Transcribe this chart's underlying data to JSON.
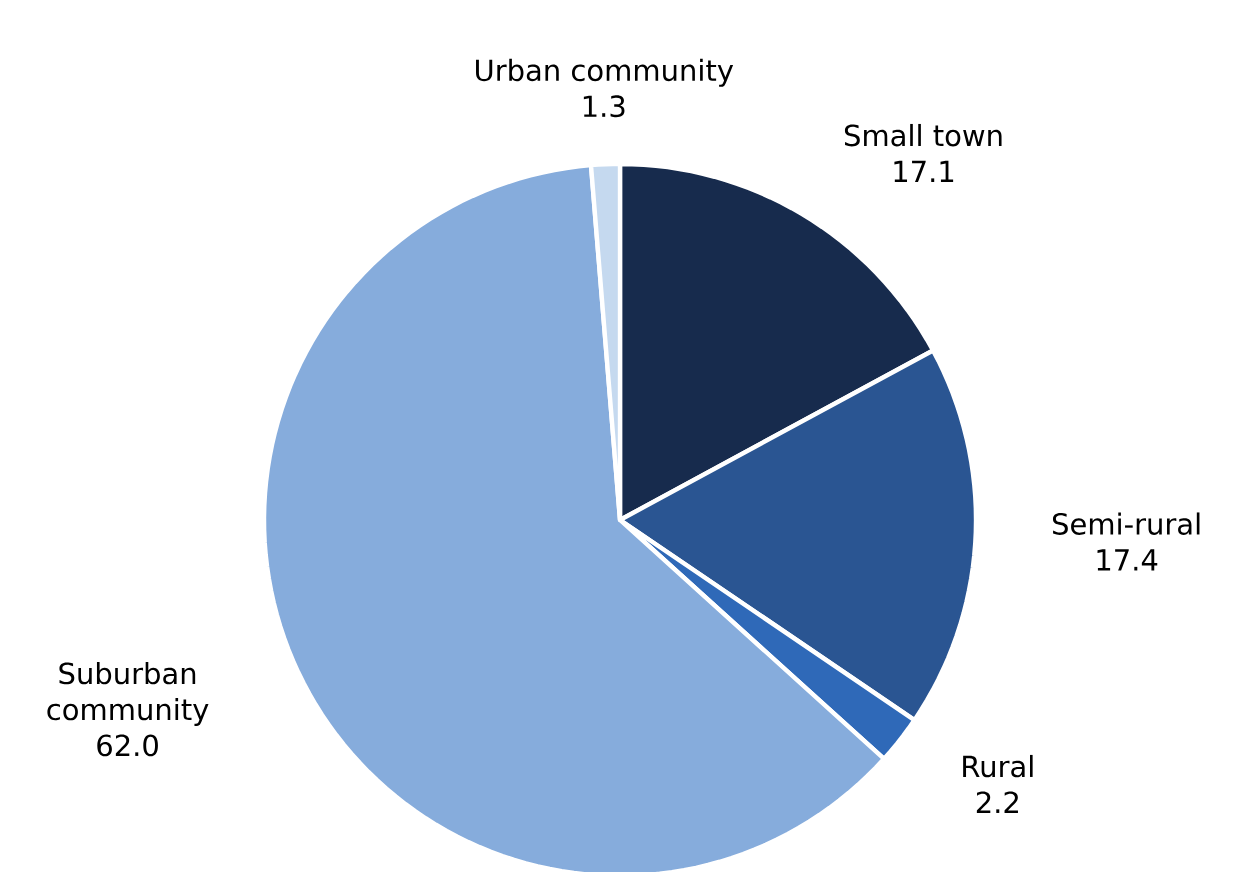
{
  "chart_data": {
    "type": "pie",
    "categories": [
      "Small town",
      "Semi-rural",
      "Rural",
      "Suburban community",
      "Urban community"
    ],
    "values": [
      17.1,
      17.4,
      2.2,
      62.0,
      1.3
    ],
    "value_labels": [
      "17.1",
      "17.4",
      "2.2",
      "62.0",
      "1.3"
    ],
    "colors": [
      "#172b4d",
      "#2a5592",
      "#2f69b8",
      "#86acdc",
      "#c5d9ef"
    ]
  }
}
